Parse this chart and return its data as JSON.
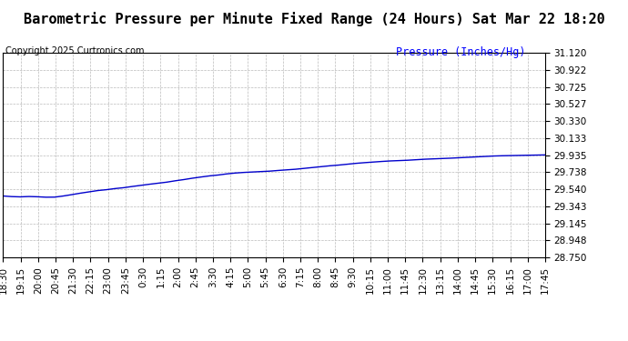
{
  "title": "Barometric Pressure per Minute Fixed Range (24 Hours) Sat Mar 22 18:20",
  "copyright": "Copyright 2025 Curtronics.com",
  "ylabel": "Pressure (Inches/Hg)",
  "ylabel_color": "#0000ff",
  "line_color": "#0000cc",
  "background_color": "#ffffff",
  "plot_bg_color": "#ffffff",
  "ylim": [
    28.75,
    31.12
  ],
  "yticks": [
    31.12,
    30.922,
    30.725,
    30.527,
    30.33,
    30.133,
    29.935,
    29.738,
    29.54,
    29.343,
    29.145,
    28.948,
    28.75
  ],
  "xtick_labels": [
    "18:30",
    "19:15",
    "20:00",
    "20:45",
    "21:30",
    "22:15",
    "23:00",
    "23:45",
    "0:30",
    "1:15",
    "2:00",
    "2:45",
    "3:30",
    "4:15",
    "5:00",
    "5:45",
    "6:30",
    "7:15",
    "8:00",
    "8:45",
    "9:30",
    "10:15",
    "11:00",
    "11:45",
    "12:30",
    "13:15",
    "14:00",
    "14:45",
    "15:30",
    "16:15",
    "17:00",
    "17:45"
  ],
  "title_fontsize": 11,
  "tick_fontsize": 7.5,
  "copyright_fontsize": 7,
  "ylabel_fontsize": 8.5,
  "grid_color": "#bbbbbb",
  "grid_style": "--",
  "pressure_data": [
    29.462,
    29.455,
    29.452,
    29.456,
    29.453,
    29.448,
    29.449,
    29.462,
    29.478,
    29.495,
    29.51,
    29.525,
    29.535,
    29.548,
    29.558,
    29.572,
    29.585,
    29.598,
    29.61,
    29.622,
    29.638,
    29.652,
    29.668,
    29.682,
    29.695,
    29.705,
    29.718,
    29.728,
    29.735,
    29.74,
    29.745,
    29.75,
    29.758,
    29.765,
    29.772,
    29.782,
    29.792,
    29.802,
    29.812,
    29.82,
    29.83,
    29.84,
    29.848,
    29.855,
    29.862,
    29.868,
    29.872,
    29.876,
    29.882,
    29.888,
    29.892,
    29.896,
    29.9,
    29.905,
    29.91,
    29.915,
    29.92,
    29.925,
    29.928,
    29.93,
    29.932,
    29.934,
    29.936,
    29.938
  ]
}
